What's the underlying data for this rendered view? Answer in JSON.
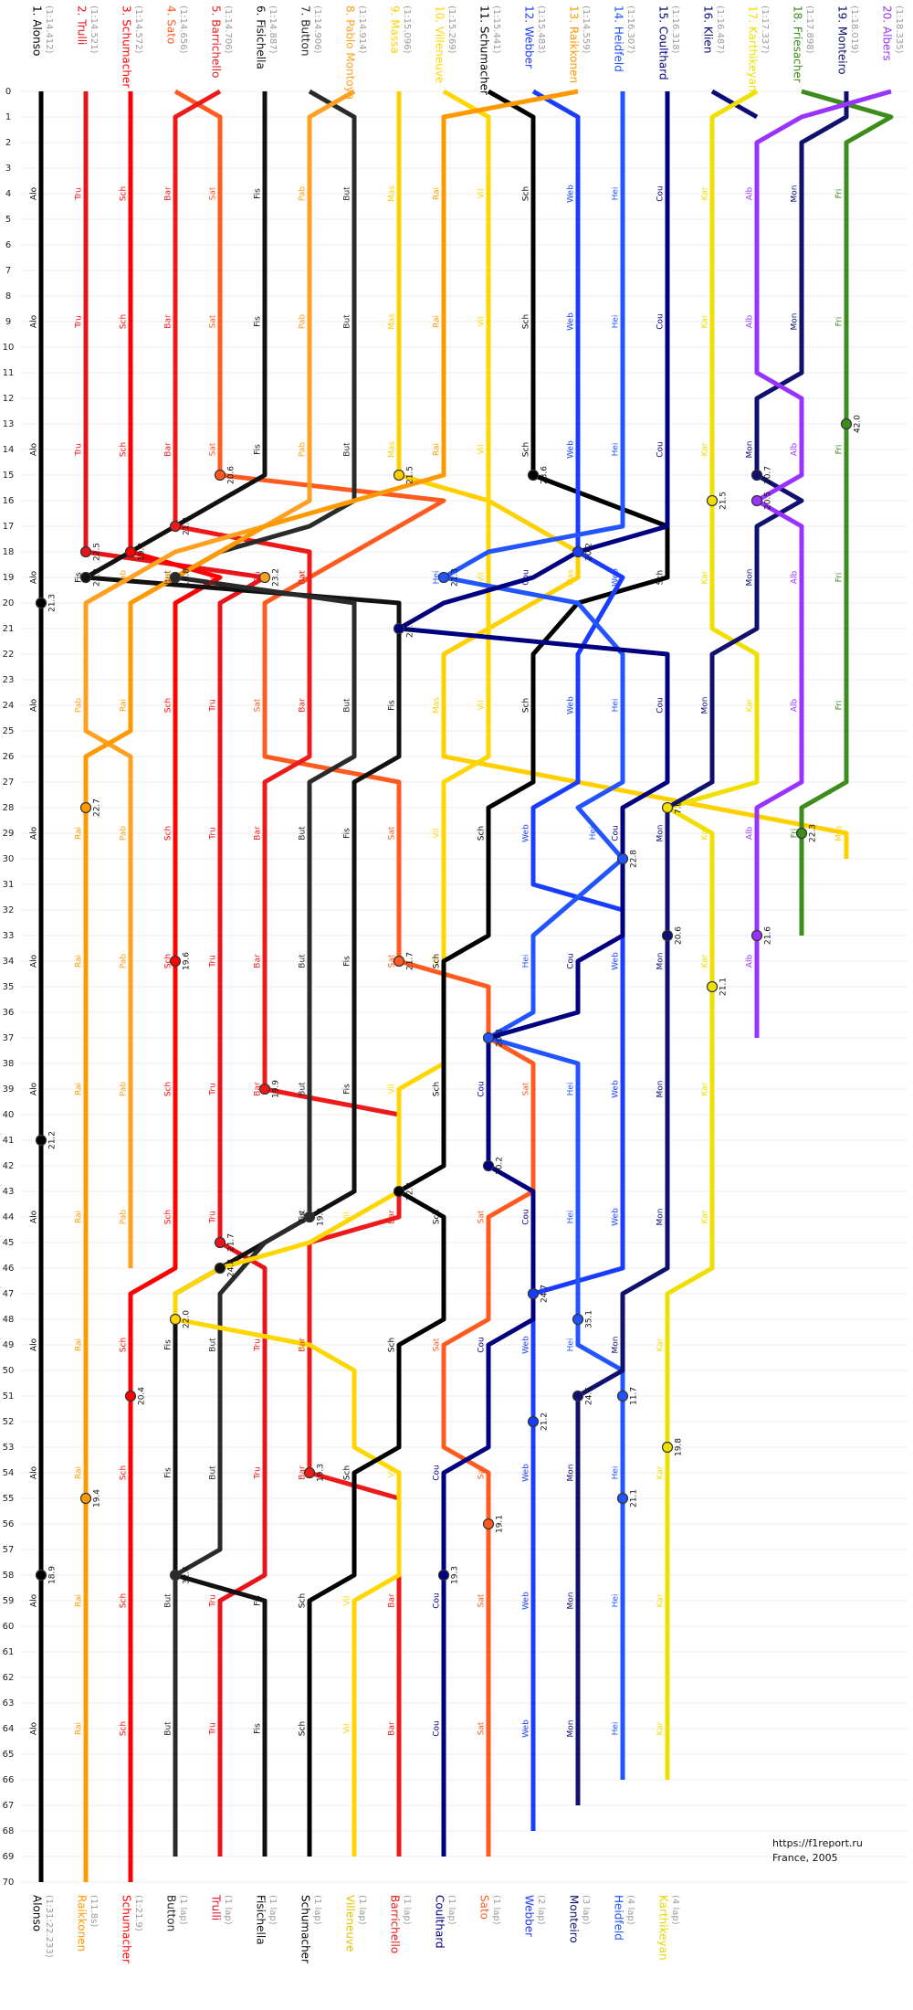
{
  "chart_data": {
    "type": "lapchart",
    "ylim": [
      0,
      70
    ],
    "yticks": [
      0,
      1,
      2,
      3,
      4,
      5,
      6,
      7,
      8,
      9,
      10,
      11,
      12,
      13,
      14,
      15,
      16,
      17,
      18,
      19,
      20,
      21,
      22,
      23,
      24,
      25,
      26,
      27,
      28,
      29,
      30,
      31,
      32,
      33,
      34,
      35,
      36,
      37,
      38,
      39,
      40,
      41,
      42,
      43,
      44,
      45,
      46,
      47,
      48,
      49,
      50,
      51,
      52,
      53,
      54,
      55,
      56,
      57,
      58,
      59,
      60,
      61,
      62,
      63,
      64,
      65,
      66,
      67,
      68,
      69,
      70
    ],
    "grid": true,
    "series": [
      {
        "name": "1. Alonso",
        "qualifying": "(1:14.412)",
        "abbr": "Alo",
        "color": "#000000",
        "x": [
          0,
          70
        ],
        "values": [
          1,
          1
        ],
        "pits": [
          {
            "lap": 20,
            "position": 1,
            "time": "21.3"
          },
          {
            "lap": 41,
            "position": 1,
            "time": "21.2"
          },
          {
            "lap": 58,
            "position": 1,
            "time": "18.9"
          }
        ]
      },
      {
        "name": "2. Trulli",
        "qualifying": "(1:14.521)",
        "abbr": "Tru",
        "color": "#e8141c",
        "x": [
          0,
          18,
          19,
          20,
          44,
          45,
          46,
          58,
          59,
          69
        ],
        "values": [
          2,
          2,
          6,
          5,
          5,
          5,
          6,
          6,
          5,
          5
        ],
        "pits": [
          {
            "lap": 18,
            "position": 2,
            "time": "22.5"
          },
          {
            "lap": 45,
            "position": 5,
            "time": "21.7"
          }
        ]
      },
      {
        "name": "3. Schumacher",
        "qualifying": "(1:14.572)",
        "abbr": "Sch",
        "color": "#ff0000",
        "x": [
          0,
          18,
          19,
          20,
          46,
          47,
          70
        ],
        "values": [
          3,
          3,
          5,
          4,
          4,
          3,
          3
        ],
        "pits": [
          {
            "lap": 18,
            "position": 3,
            "time": "19.8"
          },
          {
            "lap": 34,
            "position": 4,
            "time": "19.6"
          },
          {
            "lap": 51,
            "position": 3,
            "time": "20.4"
          }
        ]
      },
      {
        "name": "4. Sato",
        "qualifying": "(1:14.656)",
        "abbr": "Sat",
        "color": "#ff5a1f",
        "x": [
          0,
          1,
          15,
          16,
          19,
          20,
          26,
          27,
          34,
          35,
          37,
          38,
          43,
          44,
          48,
          49,
          53,
          54,
          69
        ],
        "values": [
          4,
          5,
          5,
          10,
          7,
          6,
          6,
          9,
          9,
          11,
          11,
          12,
          12,
          11,
          11,
          10,
          10,
          11,
          11
        ],
        "pits": [
          {
            "lap": 15,
            "position": 5,
            "time": "20.6"
          },
          {
            "lap": 34,
            "position": 9,
            "time": "21.7"
          },
          {
            "lap": 56,
            "position": 11,
            "time": "19.1"
          }
        ]
      },
      {
        "name": "5. Barrichello",
        "qualifying": "(1:14.706)",
        "abbr": "Bar",
        "color": "#ee1a1a",
        "x": [
          0,
          1,
          17,
          18,
          26,
          27,
          39,
          40,
          44,
          45,
          54,
          55,
          69
        ],
        "values": [
          5,
          4,
          4,
          7,
          7,
          6,
          6,
          9,
          9,
          7,
          7,
          9,
          9
        ],
        "pits": [
          {
            "lap": 17,
            "position": 4,
            "time": "21.3"
          },
          {
            "lap": 39,
            "position": 6,
            "time": "19.9"
          },
          {
            "lap": 54,
            "position": 7,
            "time": "19.3"
          }
        ]
      },
      {
        "name": "6. Fisichella",
        "qualifying": "(1:14.887)",
        "abbr": "Fis",
        "color": "#111111",
        "x": [
          0,
          15,
          16,
          17,
          18,
          19,
          20,
          26,
          27,
          43,
          44,
          45,
          46,
          47,
          58,
          59,
          69
        ],
        "values": [
          6,
          6,
          5,
          4,
          3,
          2,
          9,
          9,
          8,
          8,
          7,
          6,
          5,
          4,
          4,
          6,
          6
        ],
        "pits": [
          {
            "lap": 19,
            "position": 2,
            "time": "22.2"
          },
          {
            "lap": 46,
            "position": 5,
            "time": "24.8"
          }
        ]
      },
      {
        "name": "7. Button",
        "qualifying": "(1:14.906)",
        "abbr": "But",
        "color": "#2a2a2a",
        "x": [
          0,
          1,
          16,
          17,
          18,
          19,
          20,
          26,
          27,
          44,
          45,
          47,
          57,
          58,
          69
        ],
        "values": [
          7,
          8,
          8,
          7,
          5,
          4,
          8,
          8,
          7,
          7,
          6,
          5,
          5,
          4,
          4
        ],
        "pits": [
          {
            "lap": 19,
            "position": 4,
            "time": "18.8"
          },
          {
            "lap": 44,
            "position": 7,
            "time": "19.0"
          },
          {
            "lap": 58,
            "position": 4,
            "time": "32.4"
          }
        ]
      },
      {
        "name": "8. Pablo Montoya",
        "qualifying": "(1:14.914)",
        "abbr": "Pab",
        "color": "#ffa020",
        "x": [
          0,
          1,
          16,
          17,
          18,
          19,
          20,
          25,
          26,
          46
        ],
        "values": [
          8,
          7,
          7,
          6,
          4,
          3,
          2,
          2,
          3,
          3
        ],
        "pits": [
          {
            "lap": 19,
            "position": 6,
            "time": "23.2"
          }
        ]
      },
      {
        "name": "9. Massa",
        "qualifying": "(1:15.096)",
        "abbr": "Mas",
        "color": "#ffd000",
        "x": [
          0,
          15,
          16,
          18,
          19,
          20,
          21,
          22,
          26,
          29,
          30
        ],
        "values": [
          9,
          9,
          11,
          13,
          13,
          12,
          11,
          10,
          10,
          19,
          19
        ],
        "pits": [
          {
            "lap": 15,
            "position": 9,
            "time": "21.5"
          }
        ]
      },
      {
        "name": "10. Villeneuve",
        "qualifying": "(1:15.269)",
        "abbr": "Vil",
        "color": "#ffd700",
        "x": [
          0,
          1,
          26,
          27,
          38,
          39,
          43,
          44,
          45,
          46,
          47,
          48,
          49,
          50,
          53,
          54,
          58,
          59,
          69
        ],
        "values": [
          10,
          11,
          11,
          10,
          10,
          9,
          9,
          8,
          7,
          5,
          4,
          4,
          7,
          8,
          8,
          9,
          9,
          8,
          8
        ],
        "pits": [
          {
            "lap": 48,
            "position": 4,
            "time": "22.0"
          }
        ]
      },
      {
        "name": "11. Schumacher",
        "qualifying": "(1:15.441)",
        "abbr": "Sch",
        "color": "#000000",
        "x": [
          0,
          1,
          15,
          17,
          19,
          20,
          22,
          27,
          28,
          33,
          34,
          42,
          43,
          44,
          48,
          49,
          53,
          54,
          58,
          59,
          69
        ],
        "values": [
          11,
          12,
          12,
          15,
          15,
          13,
          12,
          12,
          11,
          11,
          10,
          10,
          9,
          10,
          10,
          9,
          9,
          8,
          8,
          7,
          7
        ],
        "pits": [
          {
            "lap": 15,
            "position": 12,
            "time": "23.6"
          },
          {
            "lap": 43,
            "position": 9,
            "time": "22.8"
          }
        ]
      },
      {
        "name": "12. Webber",
        "qualifying": "(1:15.483)",
        "abbr": "Web",
        "color": "#1a3cff",
        "x": [
          0,
          1,
          18,
          19,
          22,
          27,
          28,
          31,
          32,
          46,
          47,
          68
        ],
        "values": [
          12,
          13,
          13,
          14,
          13,
          13,
          12,
          12,
          14,
          14,
          12,
          12
        ],
        "pits": [
          {
            "lap": 18,
            "position": 13,
            "time": "20.2"
          },
          {
            "lap": 47,
            "position": 12,
            "time": "24.7"
          },
          {
            "lap": 52,
            "position": 12,
            "time": "21.2"
          }
        ]
      },
      {
        "name": "13. Raikkonen",
        "qualifying": "(1:14.559)",
        "abbr": "Rai",
        "color": "#ff9900",
        "x": [
          0,
          1,
          15,
          16,
          17,
          18,
          19,
          20,
          25,
          26,
          70
        ],
        "values": [
          13,
          10,
          10,
          8,
          6,
          5,
          4,
          3,
          3,
          2,
          2
        ],
        "pits": [
          {
            "lap": 28,
            "position": 2,
            "time": "22.7"
          },
          {
            "lap": 55,
            "position": 2,
            "time": "19.4"
          }
        ]
      },
      {
        "name": "14. Heidfeld",
        "qualifying": "(1:16.307)",
        "abbr": "Hei",
        "color": "#2255ff",
        "x": [
          0,
          17,
          18,
          19,
          20,
          22,
          27,
          28,
          30,
          33,
          36,
          37,
          38,
          49,
          50,
          66
        ],
        "values": [
          14,
          14,
          11,
          10,
          13,
          14,
          14,
          13,
          14,
          12,
          12,
          11,
          13,
          13,
          14,
          14
        ],
        "pits": [
          {
            "lap": 19,
            "position": 10,
            "time": "21.3"
          },
          {
            "lap": 30,
            "position": 14,
            "time": "22.8"
          },
          {
            "lap": 37,
            "position": 11,
            "time": "20.3"
          },
          {
            "lap": 48,
            "position": 13,
            "time": "35.1"
          },
          {
            "lap": 51,
            "position": 14,
            "time": "11.7"
          },
          {
            "lap": 55,
            "position": 14,
            "time": "21.1"
          }
        ]
      },
      {
        "name": "15. Coulthard",
        "qualifying": "(1:16.318)",
        "abbr": "Cou",
        "color": "#000080",
        "x": [
          0,
          17,
          18,
          19,
          20,
          21,
          22,
          27,
          28,
          33,
          34,
          36,
          37,
          42,
          43,
          48,
          49,
          53,
          54,
          69
        ],
        "values": [
          15,
          15,
          13,
          12,
          10,
          9,
          15,
          15,
          14,
          14,
          13,
          13,
          11,
          11,
          12,
          12,
          11,
          11,
          10,
          10
        ],
        "pits": [
          {
            "lap": 21,
            "position": 9,
            "time": "21.1"
          },
          {
            "lap": 42,
            "position": 11,
            "time": "20.2"
          },
          {
            "lap": 58,
            "position": 10,
            "time": "19.3"
          }
        ]
      },
      {
        "name": "16. Klien",
        "qualifying": "(1:16.487)",
        "color": "#0a0a78",
        "x": [
          0,
          1
        ],
        "values": [
          16,
          17
        ],
        "pits": []
      },
      {
        "name": "17. Karthikeyan",
        "qualifying": "(1:17.337)",
        "abbr": "Kar",
        "color": "#f0e000",
        "x": [
          0,
          1,
          21,
          22,
          27,
          28,
          29,
          46,
          47,
          66
        ],
        "values": [
          17,
          16,
          16,
          17,
          17,
          15,
          16,
          16,
          15,
          15
        ],
        "pits": [
          {
            "lap": 16,
            "position": 16,
            "time": "21.5"
          },
          {
            "lap": 28,
            "position": 15,
            "time": "7.0"
          },
          {
            "lap": 35,
            "position": 16,
            "time": "21.1"
          },
          {
            "lap": 53,
            "position": 15,
            "time": "19.8"
          }
        ]
      },
      {
        "name": "18. Friesacher",
        "qualifying": "(1:17.898)",
        "abbr": "Fri",
        "color": "#3d8c1c",
        "x": [
          0,
          1,
          2,
          27,
          28,
          33
        ],
        "values": [
          18,
          20,
          19,
          19,
          18,
          18
        ],
        "pits": [
          {
            "lap": 13,
            "position": 19,
            "time": "42.0"
          },
          {
            "lap": 29,
            "position": 18,
            "time": "22.3"
          }
        ]
      },
      {
        "name": "19. Monteiro",
        "qualifying": "(1:18.019)",
        "abbr": "Mon",
        "color": "#10106e",
        "x": [
          0,
          1,
          2,
          11,
          12,
          15,
          16,
          17,
          21,
          22,
          27,
          28,
          46,
          47,
          50,
          51,
          67
        ],
        "values": [
          19,
          19,
          18,
          18,
          17,
          17,
          18,
          17,
          17,
          16,
          16,
          15,
          15,
          14,
          14,
          13,
          13
        ],
        "pits": [
          {
            "lap": 15,
            "position": 17,
            "time": "20.7"
          },
          {
            "lap": 33,
            "position": 15,
            "time": "20.6"
          },
          {
            "lap": 51,
            "position": 13,
            "time": "24.6"
          }
        ]
      },
      {
        "name": "20. Albers",
        "qualifying": "(1:18.335)",
        "abbr": "Alb",
        "color": "#9933ff",
        "x": [
          0,
          1,
          2,
          11,
          12,
          15,
          16,
          17,
          27,
          28,
          37
        ],
        "values": [
          20,
          18,
          17,
          17,
          18,
          18,
          17,
          18,
          18,
          17,
          17
        ],
        "pits": [
          {
            "lap": 16,
            "position": 17,
            "time": "20.5"
          },
          {
            "lap": 33,
            "position": 17,
            "time": "21.6"
          }
        ]
      }
    ],
    "classification": [
      {
        "name": "Alonso",
        "result": "(1:31:22.233)",
        "color": "#000000"
      },
      {
        "name": "Raikkonen",
        "result": "(11.8s)",
        "color": "#ff9900"
      },
      {
        "name": "Schumacher",
        "result": "(1:21.9)",
        "color": "#ff0000"
      },
      {
        "name": "Button",
        "result": "(1 lap)",
        "color": "#2a2a2a"
      },
      {
        "name": "Trulli",
        "result": "(1 lap)",
        "color": "#e8141c"
      },
      {
        "name": "Fisichella",
        "result": "(1 lap)",
        "color": "#111111"
      },
      {
        "name": "Schumacher",
        "result": "(1 lap)",
        "color": "#000000"
      },
      {
        "name": "Villeneuve",
        "result": "(1 lap)",
        "color": "#e6c200"
      },
      {
        "name": "Barrichello",
        "result": "(1 lap)",
        "color": "#ee1a1a"
      },
      {
        "name": "Coulthard",
        "result": "(1 lap)",
        "color": "#000080"
      },
      {
        "name": "Sato",
        "result": "(1 lap)",
        "color": "#ff5a1f"
      },
      {
        "name": "Webber",
        "result": "(2 lap)",
        "color": "#1a3cff"
      },
      {
        "name": "Monteiro",
        "result": "(3 lap)",
        "color": "#10106e"
      },
      {
        "name": "Heidfeld",
        "result": "(4 lap)",
        "color": "#2255ff"
      },
      {
        "name": "Karthikeyan",
        "result": "(4 lap)",
        "color": "#e6d600"
      }
    ],
    "source": "https://f1report.ru",
    "caption": "France, 2005"
  }
}
